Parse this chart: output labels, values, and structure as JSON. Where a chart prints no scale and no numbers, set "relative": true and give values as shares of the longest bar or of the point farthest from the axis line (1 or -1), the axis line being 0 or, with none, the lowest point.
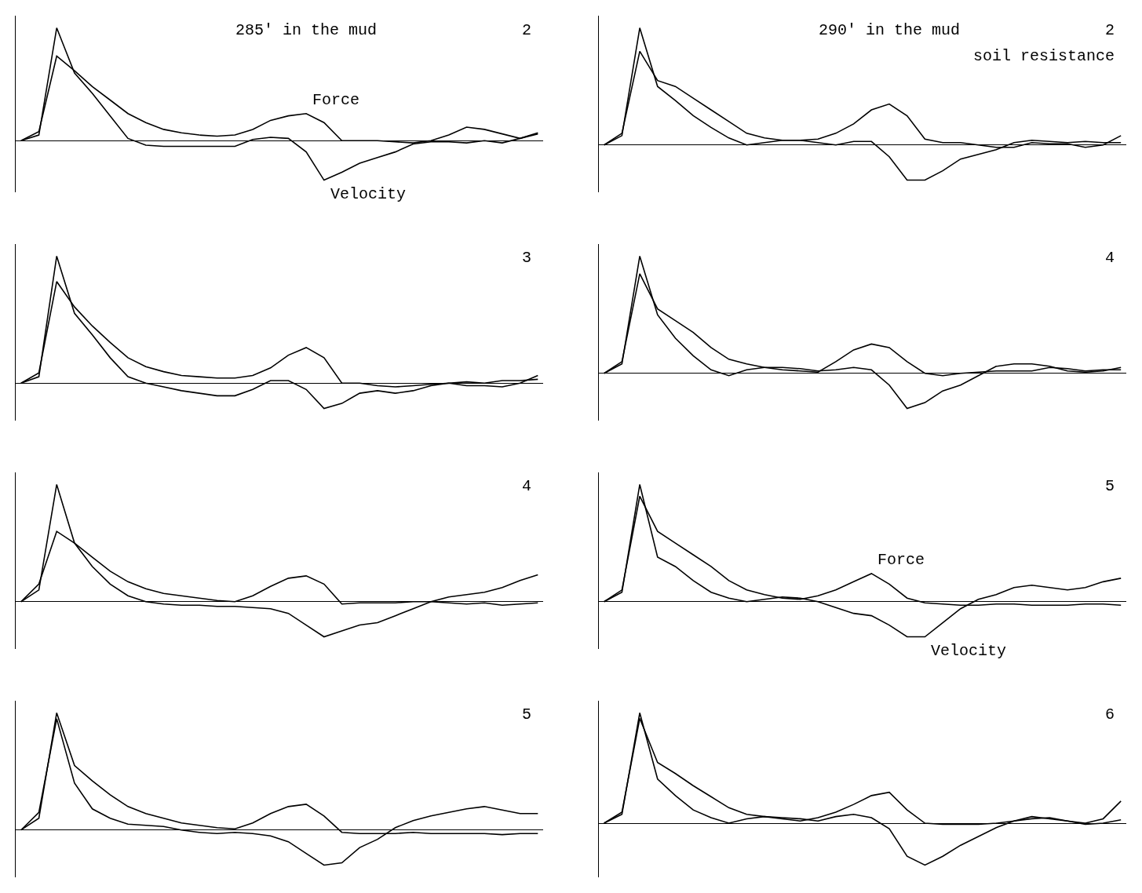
{
  "chart_data": [
    {
      "type": "line",
      "relative": true,
      "title": "285' in the mud",
      "annotations": [
        "2"
      ],
      "categories": [
        null,
        null,
        null,
        null,
        null,
        null,
        null,
        null,
        null,
        null,
        null,
        null,
        null,
        null,
        null,
        null,
        null,
        null,
        null,
        null,
        null,
        null,
        null,
        null,
        null,
        null,
        null,
        null,
        null,
        null
      ],
      "series": [
        {
          "name": "Force",
          "color": "#000000",
          "values": [
            0,
            0.08,
            0.75,
            0.62,
            0.48,
            0.36,
            0.24,
            0.16,
            0.1,
            0.07,
            0.05,
            0.04,
            0.05,
            0.1,
            0.18,
            0.22,
            0.24,
            0.16,
            0,
            0,
            0,
            -0.01,
            -0.02,
            0,
            0.05,
            0.12,
            0.1,
            0.06,
            0.02,
            0.06
          ]
        },
        {
          "name": "Velocity",
          "color": "#000000",
          "values": [
            0,
            0.05,
            1,
            0.6,
            0.42,
            0.22,
            0.02,
            -0.04,
            -0.05,
            -0.05,
            -0.05,
            -0.05,
            -0.05,
            0.01,
            0.03,
            0.02,
            -0.1,
            -0.35,
            -0.28,
            -0.2,
            -0.15,
            -0.1,
            -0.03,
            -0.01,
            -0.01,
            -0.02,
            0,
            -0.02,
            0.02,
            0.07
          ]
        }
      ]
    },
    {
      "type": "line",
      "relative": true,
      "title": "290' in the mud",
      "annotations": [
        "2",
        "soil resistance"
      ],
      "categories": [
        null,
        null,
        null,
        null,
        null,
        null,
        null,
        null,
        null,
        null,
        null,
        null,
        null,
        null,
        null,
        null,
        null,
        null,
        null,
        null,
        null,
        null,
        null,
        null,
        null,
        null,
        null,
        null,
        null,
        null
      ],
      "series": [
        {
          "color": "#000000",
          "values": [
            0,
            0.1,
            0.8,
            0.55,
            0.5,
            0.4,
            0.3,
            0.2,
            0.1,
            0.06,
            0.04,
            0.04,
            0.05,
            0.1,
            0.18,
            0.3,
            0.35,
            0.25,
            0.05,
            0.02,
            0.02,
            0,
            -0.02,
            -0.02,
            0.02,
            0.01,
            0.01,
            -0.02,
            0,
            0.08
          ]
        },
        {
          "color": "#000000",
          "values": [
            0,
            0.08,
            1,
            0.5,
            0.38,
            0.25,
            0.15,
            0.06,
            0,
            0.02,
            0.04,
            0.04,
            0.02,
            0,
            0.03,
            0.03,
            -0.1,
            -0.3,
            -0.3,
            -0.22,
            -0.12,
            -0.08,
            -0.04,
            0.02,
            0.04,
            0.03,
            0.02,
            0.03,
            0.02,
            0.02
          ]
        }
      ]
    },
    {
      "type": "line",
      "relative": true,
      "annotations": [
        "3"
      ],
      "categories": [
        null,
        null,
        null,
        null,
        null,
        null,
        null,
        null,
        null,
        null,
        null,
        null,
        null,
        null,
        null,
        null,
        null,
        null,
        null,
        null,
        null,
        null,
        null,
        null,
        null,
        null,
        null,
        null,
        null,
        null
      ],
      "series": [
        {
          "color": "#000000",
          "values": [
            0,
            0.08,
            0.8,
            0.6,
            0.45,
            0.32,
            0.2,
            0.13,
            0.09,
            0.06,
            0.05,
            0.04,
            0.04,
            0.06,
            0.12,
            0.22,
            0.28,
            0.2,
            0,
            0,
            -0.02,
            -0.03,
            -0.02,
            -0.01,
            0,
            -0.02,
            -0.02,
            -0.03,
            0,
            0.06
          ]
        },
        {
          "color": "#000000",
          "values": [
            0,
            0.05,
            1,
            0.55,
            0.38,
            0.2,
            0.05,
            0,
            -0.03,
            -0.06,
            -0.08,
            -0.1,
            -0.1,
            -0.05,
            0.02,
            0.02,
            -0.05,
            -0.2,
            -0.16,
            -0.08,
            -0.06,
            -0.08,
            -0.06,
            -0.02,
            0,
            0.01,
            0,
            0.02,
            0.02,
            0.03
          ]
        }
      ]
    },
    {
      "type": "line",
      "relative": true,
      "annotations": [
        "4"
      ],
      "categories": [
        null,
        null,
        null,
        null,
        null,
        null,
        null,
        null,
        null,
        null,
        null,
        null,
        null,
        null,
        null,
        null,
        null,
        null,
        null,
        null,
        null,
        null,
        null,
        null,
        null,
        null,
        null,
        null,
        null,
        null
      ],
      "series": [
        {
          "color": "#000000",
          "values": [
            0,
            0.1,
            0.85,
            0.55,
            0.45,
            0.35,
            0.22,
            0.12,
            0.08,
            0.05,
            0.03,
            0.02,
            0.01,
            0.1,
            0.2,
            0.25,
            0.22,
            0.1,
            0,
            -0.02,
            0,
            0.01,
            0.02,
            0.02,
            0.02,
            0.05,
            0.04,
            0.02,
            0.03,
            0.03
          ]
        },
        {
          "color": "#000000",
          "values": [
            0,
            0.08,
            1,
            0.5,
            0.3,
            0.15,
            0.03,
            -0.02,
            0.03,
            0.05,
            0.05,
            0.04,
            0.02,
            0.03,
            0.05,
            0.03,
            -0.1,
            -0.3,
            -0.25,
            -0.15,
            -0.1,
            -0.02,
            0.06,
            0.08,
            0.08,
            0.06,
            0.02,
            0.01,
            0.02,
            0.05
          ]
        }
      ]
    },
    {
      "type": "line",
      "relative": true,
      "annotations": [
        "4"
      ],
      "categories": [
        null,
        null,
        null,
        null,
        null,
        null,
        null,
        null,
        null,
        null,
        null,
        null,
        null,
        null,
        null,
        null,
        null,
        null,
        null,
        null,
        null,
        null,
        null,
        null,
        null,
        null,
        null,
        null,
        null,
        null
      ],
      "series": [
        {
          "color": "#000000",
          "values": [
            0,
            0.15,
            0.6,
            0.5,
            0.38,
            0.26,
            0.17,
            0.11,
            0.07,
            0.05,
            0.03,
            0.01,
            0,
            0.05,
            0.13,
            0.2,
            0.22,
            0.15,
            -0.02,
            -0.01,
            -0.01,
            -0.01,
            0,
            0,
            -0.01,
            -0.02,
            -0.01,
            -0.03,
            -0.02,
            -0.01
          ]
        },
        {
          "color": "#000000",
          "values": [
            0,
            0.1,
            1,
            0.5,
            0.3,
            0.15,
            0.05,
            0,
            -0.02,
            -0.03,
            -0.03,
            -0.04,
            -0.04,
            -0.05,
            -0.06,
            -0.1,
            -0.2,
            -0.3,
            -0.25,
            -0.2,
            -0.18,
            -0.12,
            -0.06,
            0,
            0.04,
            0.06,
            0.08,
            0.12,
            0.18,
            0.23
          ]
        }
      ]
    },
    {
      "type": "line",
      "relative": true,
      "annotations": [
        "5"
      ],
      "categories": [
        null,
        null,
        null,
        null,
        null,
        null,
        null,
        null,
        null,
        null,
        null,
        null,
        null,
        null,
        null,
        null,
        null,
        null,
        null,
        null,
        null,
        null,
        null,
        null,
        null,
        null,
        null,
        null,
        null,
        null
      ],
      "series": [
        {
          "name": "Force",
          "color": "#000000",
          "values": [
            0,
            0.1,
            0.9,
            0.6,
            0.5,
            0.4,
            0.3,
            0.18,
            0.1,
            0.06,
            0.03,
            0.02,
            0.05,
            0.1,
            0.17,
            0.24,
            0.15,
            0.03,
            -0.01,
            -0.02,
            -0.03,
            -0.03,
            -0.02,
            -0.02,
            -0.03,
            -0.03,
            -0.03,
            -0.02,
            -0.02,
            -0.03
          ]
        },
        {
          "name": "Velocity",
          "color": "#000000",
          "values": [
            0,
            0.08,
            1,
            0.38,
            0.3,
            0.18,
            0.08,
            0.03,
            0,
            0.02,
            0.04,
            0.03,
            0,
            -0.05,
            -0.1,
            -0.12,
            -0.2,
            -0.3,
            -0.3,
            -0.18,
            -0.06,
            0.02,
            0.06,
            0.12,
            0.14,
            0.12,
            0.1,
            0.12,
            0.17,
            0.2
          ]
        }
      ]
    },
    {
      "type": "line",
      "relative": true,
      "annotations": [
        "5"
      ],
      "categories": [
        null,
        null,
        null,
        null,
        null,
        null,
        null,
        null,
        null,
        null,
        null,
        null,
        null,
        null,
        null,
        null,
        null,
        null,
        null,
        null,
        null,
        null,
        null,
        null,
        null,
        null,
        null,
        null,
        null,
        null
      ],
      "series": [
        {
          "color": "#000000",
          "values": [
            0,
            0.1,
            1,
            0.55,
            0.42,
            0.3,
            0.2,
            0.14,
            0.1,
            0.06,
            0.04,
            0.02,
            0.01,
            0.06,
            0.14,
            0.2,
            0.22,
            0.12,
            -0.02,
            -0.03,
            -0.03,
            -0.03,
            -0.02,
            -0.03,
            -0.03,
            -0.03,
            -0.03,
            -0.04,
            -0.03,
            -0.03
          ]
        },
        {
          "color": "#000000",
          "values": [
            0,
            0.15,
            0.95,
            0.4,
            0.18,
            0.1,
            0.05,
            0.04,
            0.03,
            0,
            -0.02,
            -0.03,
            -0.02,
            -0.03,
            -0.05,
            -0.1,
            -0.2,
            -0.3,
            -0.28,
            -0.15,
            -0.08,
            0.02,
            0.08,
            0.12,
            0.15,
            0.18,
            0.2,
            0.17,
            0.14,
            0.14
          ]
        }
      ]
    },
    {
      "type": "line",
      "relative": true,
      "annotations": [
        "6"
      ],
      "categories": [
        null,
        null,
        null,
        null,
        null,
        null,
        null,
        null,
        null,
        null,
        null,
        null,
        null,
        null,
        null,
        null,
        null,
        null,
        null,
        null,
        null,
        null,
        null,
        null,
        null,
        null,
        null,
        null,
        null,
        null
      ],
      "series": [
        {
          "color": "#000000",
          "values": [
            0,
            0.1,
            0.95,
            0.55,
            0.45,
            0.34,
            0.24,
            0.14,
            0.08,
            0.06,
            0.04,
            0.02,
            0.05,
            0.1,
            0.17,
            0.25,
            0.28,
            0.12,
            0,
            -0.01,
            -0.01,
            -0.01,
            0,
            0.02,
            0.04,
            0.05,
            0.02,
            -0.01,
            0,
            0.03
          ]
        },
        {
          "color": "#000000",
          "values": [
            0,
            0.08,
            1,
            0.4,
            0.25,
            0.12,
            0.05,
            0,
            0.04,
            0.06,
            0.05,
            0.04,
            0.02,
            0.06,
            0.08,
            0.05,
            -0.05,
            -0.3,
            -0.38,
            -0.3,
            -0.2,
            -0.12,
            -0.04,
            0.02,
            0.06,
            0.04,
            0.02,
            0,
            0.04,
            0.2
          ]
        }
      ]
    }
  ]
}
